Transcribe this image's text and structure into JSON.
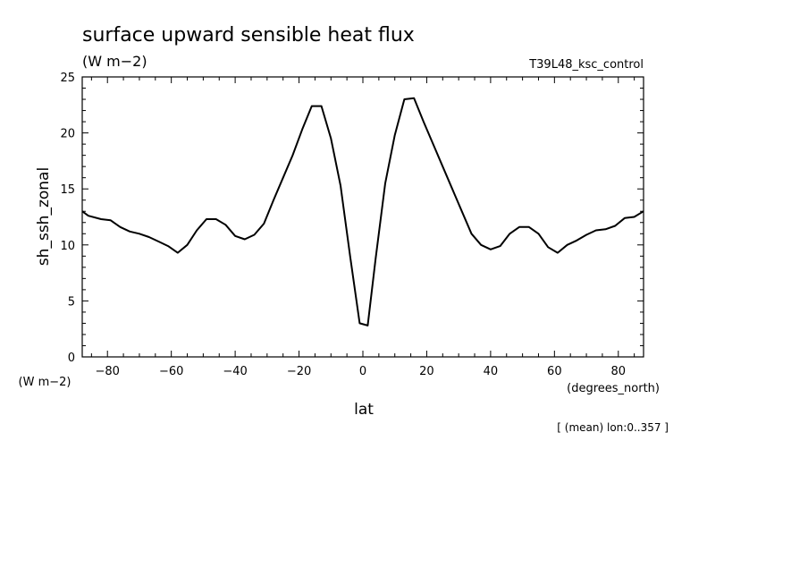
{
  "title": "surface upward sensible heat flux",
  "units": "(W m−2)",
  "experiment": "T39L48_ksc_control",
  "y_units_label": "(W m−2)",
  "x_units_label": "(degrees_north)",
  "note": "[ (mean) lon:0..357 ]",
  "chart_data": {
    "type": "line",
    "title": "surface upward sensible heat flux",
    "xlabel": "lat",
    "ylabel": "sh_ssh_zonal",
    "xlim": [
      -87.9,
      87.9
    ],
    "ylim": [
      0,
      25
    ],
    "x_ticks": [
      -80,
      -60,
      -40,
      -20,
      0,
      20,
      40,
      60,
      80
    ],
    "y_ticks": [
      0,
      5,
      10,
      15,
      20,
      25
    ],
    "grid": false,
    "series": [
      {
        "x": [
          -87.9,
          -86,
          -82,
          -79,
          -76,
          -73,
          -70,
          -67,
          -64,
          -61,
          -58,
          -55,
          -52,
          -49,
          -46,
          -43,
          -40,
          -37,
          -34,
          -31,
          -28,
          -25,
          -22,
          -19,
          -16,
          -13,
          -10,
          -7,
          -4,
          -1,
          1.5,
          4,
          7,
          10,
          13,
          16,
          19,
          22,
          25,
          28,
          31,
          34,
          37,
          40,
          43,
          46,
          49,
          52,
          55,
          58,
          61,
          64,
          67,
          70,
          73,
          76,
          79,
          82,
          85,
          87.9
        ],
        "y": [
          13.0,
          12.6,
          12.3,
          12.2,
          11.6,
          11.2,
          11.0,
          10.7,
          10.3,
          9.9,
          9.3,
          10.0,
          11.3,
          12.3,
          12.3,
          11.8,
          10.8,
          10.5,
          10.9,
          11.9,
          14.0,
          16.0,
          18.0,
          20.3,
          22.4,
          22.4,
          19.5,
          15.3,
          9.0,
          3.0,
          2.8,
          8.8,
          15.5,
          19.8,
          23.0,
          23.1,
          21.0,
          19.0,
          17.0,
          15.0,
          13.0,
          11.0,
          10.0,
          9.6,
          9.9,
          11.0,
          11.6,
          11.6,
          11.0,
          9.8,
          9.3,
          10.0,
          10.4,
          10.9,
          11.3,
          11.4,
          11.7,
          12.4,
          12.5,
          13.0
        ]
      }
    ]
  }
}
